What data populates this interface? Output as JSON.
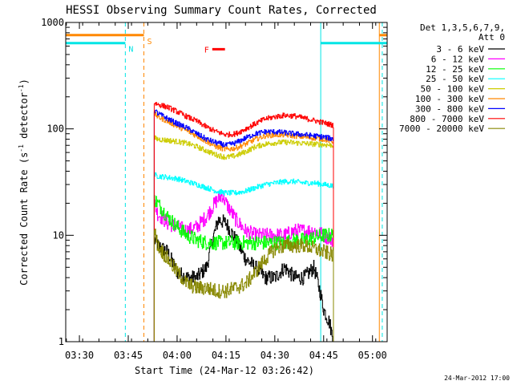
{
  "chart_data": {
    "type": "line",
    "title": "HESSI Observing Summary Count Rates, Corrected",
    "xlabel": "Start Time (24-Mar-12 03:26:42)",
    "ylabel_main": "Corrected Count Rate (s",
    "ylabel_sup1": "-1",
    "ylabel_mid": " detector",
    "ylabel_sup2": "-1",
    "ylabel_end": ")",
    "y_scale": "log",
    "ylim": [
      1,
      1000
    ],
    "xlim": [
      3.43,
      5.075
    ],
    "x_ticks": [
      {
        "value": 3.5,
        "label": "03:30"
      },
      {
        "value": 3.75,
        "label": "03:45"
      },
      {
        "value": 4.0,
        "label": "04:00"
      },
      {
        "value": 4.25,
        "label": "04:15"
      },
      {
        "value": 4.5,
        "label": "04:30"
      },
      {
        "value": 4.75,
        "label": "04:45"
      },
      {
        "value": 5.0,
        "label": "05:00"
      }
    ],
    "y_ticks": [
      {
        "value": 1,
        "label": "1"
      },
      {
        "value": 10,
        "label": "10"
      },
      {
        "value": 100,
        "label": "100"
      },
      {
        "value": 1000,
        "label": "1000"
      }
    ],
    "legend_header": [
      "Det 1,3,5,6,7,9,",
      "Att 0"
    ],
    "legend_placement": "right",
    "footer_date": "24-Mar-2012 17:00",
    "data_window": [
      3.883,
      4.8
    ],
    "series": [
      {
        "name": "3 - 6 keV",
        "color": "#000000",
        "x": [
          3.883,
          3.9,
          3.95,
          4.0,
          4.05,
          4.1,
          4.15,
          4.18,
          4.21,
          4.25,
          4.3,
          4.35,
          4.4,
          4.45,
          4.5,
          4.55,
          4.6,
          4.65,
          4.7,
          4.73,
          4.75,
          4.78,
          4.8
        ],
        "y": [
          9,
          8,
          7,
          4.5,
          4,
          4,
          5,
          9,
          14,
          13,
          9,
          6,
          5,
          4,
          4,
          5,
          4,
          4,
          5,
          3,
          2,
          1.5,
          1
        ]
      },
      {
        "name": "6 - 12 keV",
        "color": "#ff00ff",
        "x": [
          3.883,
          3.9,
          3.95,
          4.0,
          4.05,
          4.1,
          4.15,
          4.2,
          4.23,
          4.25,
          4.3,
          4.35,
          4.4,
          4.45,
          4.5,
          4.55,
          4.6,
          4.65,
          4.7,
          4.75,
          4.8
        ],
        "y": [
          20,
          16,
          13,
          12,
          11,
          12,
          15,
          21,
          24,
          20,
          14,
          11,
          10,
          10,
          10,
          10,
          11,
          11,
          11,
          10,
          9
        ]
      },
      {
        "name": "12 - 25 keV",
        "color": "#00ff00",
        "x": [
          3.883,
          3.9,
          3.95,
          4.0,
          4.05,
          4.1,
          4.15,
          4.2,
          4.25,
          4.3,
          4.35,
          4.4,
          4.45,
          4.5,
          4.55,
          4.6,
          4.65,
          4.7,
          4.75,
          4.8
        ],
        "y": [
          22,
          20,
          15,
          12,
          10,
          9,
          8.5,
          8.5,
          8.5,
          8.5,
          8.5,
          8.5,
          8.5,
          8.5,
          8.5,
          9,
          9,
          9.5,
          10,
          10
        ]
      },
      {
        "name": "25 - 50 keV",
        "color": "#00ffff",
        "x": [
          3.883,
          3.9,
          3.95,
          4.0,
          4.05,
          4.1,
          4.15,
          4.2,
          4.25,
          4.3,
          4.35,
          4.4,
          4.45,
          4.5,
          4.55,
          4.6,
          4.65,
          4.7,
          4.75,
          4.8
        ],
        "y": [
          37,
          36,
          35,
          34,
          32,
          30,
          28,
          26,
          25,
          25,
          26,
          28,
          30,
          31,
          32,
          32,
          31,
          31,
          30,
          29
        ]
      },
      {
        "name": "50 - 100 keV",
        "color": "#cccc00",
        "x": [
          3.883,
          3.9,
          3.95,
          4.0,
          4.05,
          4.1,
          4.15,
          4.2,
          4.25,
          4.3,
          4.35,
          4.4,
          4.45,
          4.5,
          4.55,
          4.6,
          4.65,
          4.7,
          4.75,
          4.8
        ],
        "y": [
          82,
          80,
          78,
          76,
          73,
          68,
          62,
          57,
          54,
          56,
          61,
          68,
          72,
          74,
          75,
          74,
          73,
          72,
          71,
          70
        ]
      },
      {
        "name": "100 - 300 keV",
        "color": "#ff8800",
        "x": [
          3.883,
          3.9,
          3.95,
          4.0,
          4.05,
          4.1,
          4.15,
          4.2,
          4.25,
          4.3,
          4.35,
          4.4,
          4.45,
          4.5,
          4.55,
          4.6,
          4.65,
          4.7,
          4.75,
          4.8
        ],
        "y": [
          140,
          130,
          118,
          106,
          96,
          86,
          76,
          68,
          64,
          66,
          72,
          80,
          86,
          88,
          88,
          86,
          84,
          82,
          80,
          76
        ]
      },
      {
        "name": "300 - 800 keV",
        "color": "#0000ff",
        "x": [
          3.883,
          3.9,
          3.95,
          4.0,
          4.05,
          4.1,
          4.15,
          4.2,
          4.25,
          4.3,
          4.35,
          4.4,
          4.45,
          4.5,
          4.55,
          4.6,
          4.65,
          4.7,
          4.75,
          4.8
        ],
        "y": [
          150,
          140,
          125,
          112,
          102,
          90,
          80,
          74,
          70,
          74,
          82,
          90,
          94,
          94,
          92,
          90,
          88,
          86,
          84,
          80
        ]
      },
      {
        "name": "800 - 7000 keV",
        "color": "#ff0000",
        "x": [
          3.883,
          3.9,
          3.95,
          4.0,
          4.05,
          4.1,
          4.15,
          4.2,
          4.25,
          4.3,
          4.35,
          4.4,
          4.45,
          4.5,
          4.55,
          4.6,
          4.65,
          4.7,
          4.75,
          4.8
        ],
        "y": [
          175,
          170,
          160,
          145,
          130,
          118,
          104,
          94,
          88,
          90,
          100,
          112,
          124,
          130,
          134,
          132,
          126,
          120,
          114,
          108
        ]
      },
      {
        "name": "7000 - 20000 keV",
        "color": "#888800",
        "x": [
          3.883,
          3.9,
          3.95,
          4.0,
          4.05,
          4.1,
          4.15,
          4.2,
          4.25,
          4.3,
          4.35,
          4.4,
          4.45,
          4.5,
          4.55,
          4.6,
          4.65,
          4.7,
          4.75,
          4.8
        ],
        "y": [
          11,
          8,
          6,
          4.5,
          3.5,
          3.2,
          3.2,
          3,
          3,
          3.2,
          3.5,
          4.5,
          6,
          7.5,
          8,
          8,
          8,
          7.5,
          7,
          6.5
        ]
      }
    ],
    "annotations": [
      {
        "label": "N",
        "color": "#00e5e5",
        "bar_x": [
          3.43,
          3.735
        ],
        "bar_y": 640,
        "vline": 3.735,
        "style": "dashed"
      },
      {
        "label": "S",
        "color": "#ff8800",
        "bar_x": [
          3.43,
          3.83
        ],
        "bar_y": 760,
        "vline": 3.83,
        "style": "dashed"
      },
      {
        "label": "F",
        "color": "#ff0000",
        "bar_x": [
          4.18,
          4.245
        ],
        "bar_y": 560
      }
    ],
    "gap_lines": [
      {
        "x": 3.735,
        "color": "#00e5e5",
        "style": "dashed"
      },
      {
        "x": 3.83,
        "color": "#ff8800",
        "style": "dashed"
      },
      {
        "x": 4.735,
        "color": "#00e5e5",
        "style": "solid"
      },
      {
        "x": 5.05,
        "color": "#00e5e5",
        "style": "dashed"
      },
      {
        "x": 5.035,
        "color": "#ff8800",
        "style": "solid"
      }
    ],
    "right_bars": [
      {
        "color": "#00e5e5",
        "x": [
          4.735,
          5.075
        ],
        "y": 640
      },
      {
        "color": "#ff8800",
        "x": [
          5.035,
          5.075
        ],
        "y": 760
      }
    ]
  }
}
